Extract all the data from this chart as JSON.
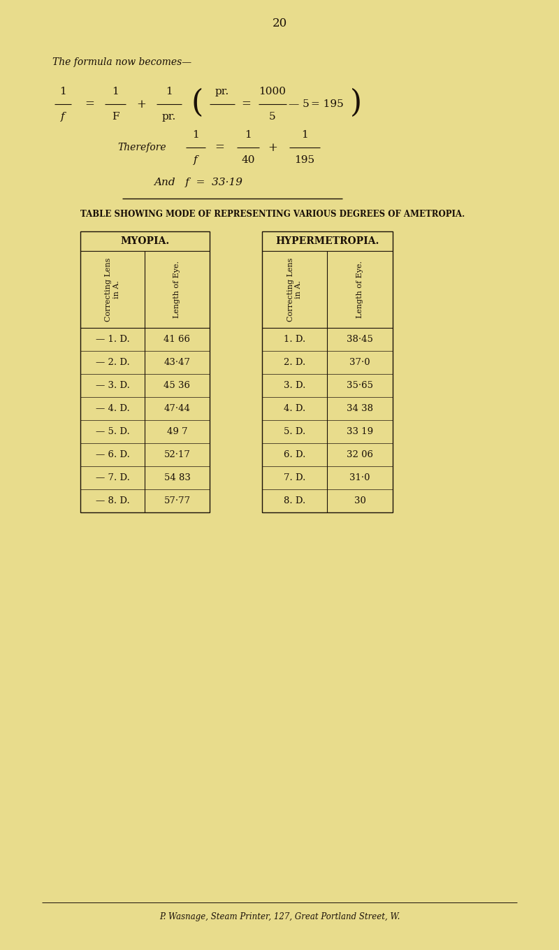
{
  "bg_color": "#e8dc8c",
  "text_color": "#1a1008",
  "page_number": "20",
  "table_heading": "TABLE SHOWING MODE OF REPRESENTING VARIOUS DEGREES OF AMETROPIA.",
  "myopia_title": "MYOPIA.",
  "hypermetropia_title": "HYPERMETROPIA.",
  "myopia_rows": [
    [
      "— 1. D.",
      "41 66"
    ],
    [
      "— 2. D.",
      "43·47"
    ],
    [
      "— 3. D.",
      "45 36"
    ],
    [
      "— 4. D.",
      "47·44"
    ],
    [
      "— 5. D.",
      "49 7"
    ],
    [
      "— 6. D.",
      "52·17"
    ],
    [
      "— 7. D.",
      "54 83"
    ],
    [
      "— 8. D.",
      "57·77"
    ]
  ],
  "hypermetropia_rows": [
    [
      "1. D.",
      "38·45"
    ],
    [
      "2. D.",
      "37·0"
    ],
    [
      "3. D.",
      "35·65"
    ],
    [
      "4. D.",
      "34 38"
    ],
    [
      "5. D.",
      "33 19"
    ],
    [
      "6. D.",
      "32 06"
    ],
    [
      "7. D.",
      "31·0"
    ],
    [
      "8. D.",
      "30"
    ]
  ],
  "footer_text": "P. Wasnage, Steam Printer, 127, Great Portland Street, W."
}
